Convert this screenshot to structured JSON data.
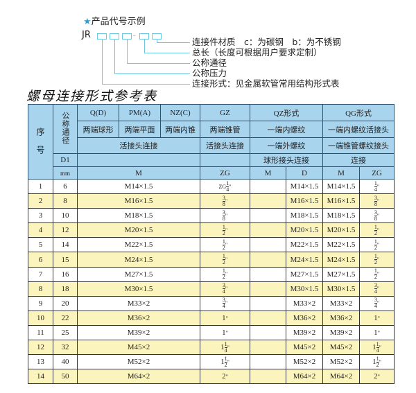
{
  "example": {
    "title": "产品代号示例",
    "star_icon": "star",
    "code_prefix": "JR",
    "separator": "-",
    "labels": [
      "连接件材质　c：为碳钢　b：为不锈钢",
      "总长（长度可根据用户要求定制）",
      "公称通径",
      "公称压力",
      "连接形式：见金属软管常用结构形式表"
    ]
  },
  "table_title": "螺母连接形式参考表",
  "header": {
    "seq": "序　号",
    "dn": "公称通径",
    "d1": "D1",
    "mm": "mm",
    "types": [
      "Q(D)",
      "PM(A)",
      "NZ(C)",
      "GZ",
      "QZ形式",
      "QG形式"
    ],
    "forms": [
      "两端球形",
      "两端平面",
      "两端内锥",
      "两端锥管",
      "一端内螺纹",
      "一端内螺纹活接头"
    ],
    "conn_a": "活接头连接",
    "conn_gz": "活接头连接",
    "qz_2": "一端外螺纹",
    "qg_2": "一端锥管螺纹接头",
    "qz_3": "球形接头连接",
    "qg_3": "连接",
    "units": [
      "M",
      "ZG",
      "M",
      "D",
      "M",
      "ZG"
    ]
  },
  "rows": [
    {
      "no": "1",
      "dn": "6",
      "m": "M14×1.5",
      "zg": {
        "prefix": "ZG",
        "whole": "",
        "num": "1",
        "den": "4"
      },
      "qz_m": "",
      "qz_d": "M14×1.5",
      "qg_m": "M14×1.5",
      "qg_zg": {
        "whole": "",
        "num": "1",
        "den": "4"
      }
    },
    {
      "no": "2",
      "dn": "8",
      "m": "M16×1.5",
      "zg": {
        "prefix": "",
        "whole": "",
        "num": "3",
        "den": "8"
      },
      "qz_m": "",
      "qz_d": "M16×1.5",
      "qg_m": "M16×1.5",
      "qg_zg": {
        "whole": "",
        "num": "3",
        "den": "8"
      }
    },
    {
      "no": "3",
      "dn": "10",
      "m": "M18×1.5",
      "zg": {
        "prefix": "",
        "whole": "",
        "num": "3",
        "den": "8"
      },
      "qz_m": "",
      "qz_d": "M18×1.5",
      "qg_m": "M18×1.5",
      "qg_zg": {
        "whole": "",
        "num": "3",
        "den": "8"
      }
    },
    {
      "no": "4",
      "dn": "12",
      "m": "M20×1.5",
      "zg": {
        "prefix": "",
        "whole": "",
        "num": "1",
        "den": "2"
      },
      "qz_m": "",
      "qz_d": "M20×1.5",
      "qg_m": "M20×1.5",
      "qg_zg": {
        "whole": "",
        "num": "1",
        "den": "2"
      }
    },
    {
      "no": "5",
      "dn": "14",
      "m": "M22×1.5",
      "zg": {
        "prefix": "",
        "whole": "",
        "num": "1",
        "den": "2"
      },
      "qz_m": "",
      "qz_d": "M22×1.5",
      "qg_m": "M22×1.5",
      "qg_zg": {
        "whole": "",
        "num": "1",
        "den": "2"
      }
    },
    {
      "no": "6",
      "dn": "15",
      "m": "M24×1.5",
      "zg": {
        "prefix": "",
        "whole": "",
        "num": "1",
        "den": "2"
      },
      "qz_m": "",
      "qz_d": "M24×1.5",
      "qg_m": "M24×1.5",
      "qg_zg": {
        "whole": "",
        "num": "1",
        "den": "2"
      }
    },
    {
      "no": "7",
      "dn": "16",
      "m": "M27×1.5",
      "zg": {
        "prefix": "",
        "whole": "",
        "num": "1",
        "den": "2"
      },
      "qz_m": "",
      "qz_d": "M27×1.5",
      "qg_m": "M27×1.5",
      "qg_zg": {
        "whole": "",
        "num": "1",
        "den": "2"
      }
    },
    {
      "no": "8",
      "dn": "18",
      "m": "M30×1.5",
      "zg": {
        "prefix": "",
        "whole": "",
        "num": "3",
        "den": "4"
      },
      "qz_m": "",
      "qz_d": "M30×1.5",
      "qg_m": "M30×1.5",
      "qg_zg": {
        "whole": "",
        "num": "3",
        "den": "4"
      }
    },
    {
      "no": "9",
      "dn": "20",
      "m": "M33×2",
      "zg": {
        "prefix": "",
        "whole": "",
        "num": "3",
        "den": "4"
      },
      "qz_m": "",
      "qz_d": "M33×2",
      "qg_m": "M33×2",
      "qg_zg": {
        "whole": "",
        "num": "3",
        "den": "4"
      }
    },
    {
      "no": "10",
      "dn": "22",
      "m": "M36×2",
      "zg": {
        "prefix": "",
        "whole": "1",
        "num": "",
        "den": ""
      },
      "qz_m": "",
      "qz_d": "M36×2",
      "qg_m": "M36×2",
      "qg_zg": {
        "whole": "1",
        "num": "",
        "den": ""
      }
    },
    {
      "no": "11",
      "dn": "25",
      "m": "M39×2",
      "zg": {
        "prefix": "",
        "whole": "1",
        "num": "",
        "den": ""
      },
      "qz_m": "",
      "qz_d": "M39×2",
      "qg_m": "M39×2",
      "qg_zg": {
        "whole": "1",
        "num": "",
        "den": ""
      }
    },
    {
      "no": "12",
      "dn": "32",
      "m": "M45×2",
      "zg": {
        "prefix": "",
        "whole": "1",
        "num": "1",
        "den": "4"
      },
      "qz_m": "",
      "qz_d": "M45×2",
      "qg_m": "M45×2",
      "qg_zg": {
        "whole": "1",
        "num": "1",
        "den": "4"
      }
    },
    {
      "no": "13",
      "dn": "40",
      "m": "M52×2",
      "zg": {
        "prefix": "",
        "whole": "1",
        "num": "1",
        "den": "2"
      },
      "qz_m": "",
      "qz_d": "M52×2",
      "qg_m": "M52×2",
      "qg_zg": {
        "whole": "1",
        "num": "1",
        "den": "2"
      }
    },
    {
      "no": "14",
      "dn": "50",
      "m": "M64×2",
      "zg": {
        "prefix": "",
        "whole": "2",
        "num": "",
        "den": ""
      },
      "qz_m": "",
      "qz_d": "M64×2",
      "qg_m": "M64×2",
      "qg_zg": {
        "whole": "2",
        "num": "",
        "den": ""
      }
    }
  ],
  "colors": {
    "header_bg": "#a9d4ee",
    "alt_row_bg": "#fcf4bd",
    "guide_line": "#6cc7e0"
  }
}
